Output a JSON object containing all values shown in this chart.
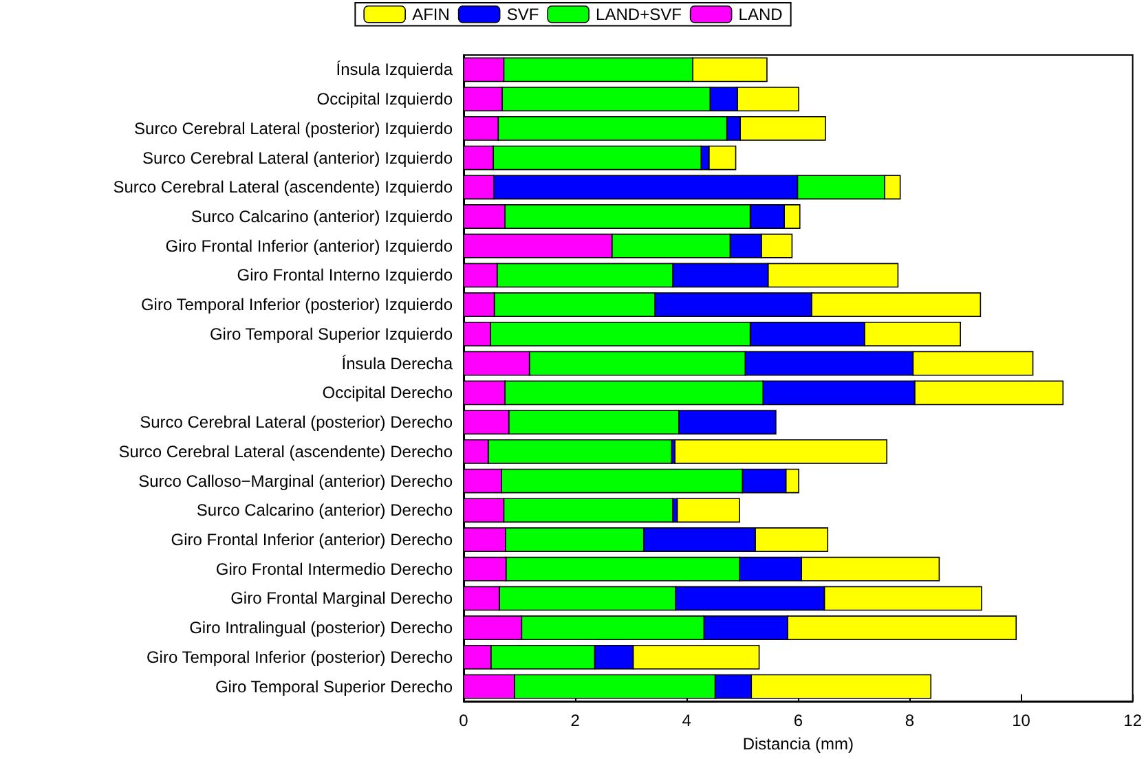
{
  "chart_data": {
    "type": "bar",
    "orientation": "horizontal",
    "xlabel": "Distancia (mm)",
    "xlim": [
      0,
      12
    ],
    "xticks": [
      0,
      2,
      4,
      6,
      8,
      10,
      12
    ],
    "legend": "top",
    "categories": [
      "Ínsula Izquierda",
      "Occipital Izquierdo",
      "Surco Cerebral Lateral (posterior) Izquierdo",
      "Surco Cerebral Lateral (anterior) Izquierdo",
      "Surco Cerebral Lateral (ascendente) Izquierdo",
      "Surco Calcarino (anterior) Izquierdo",
      "Giro Frontal Inferior (anterior) Izquierdo",
      "Giro Frontal Interno Izquierdo",
      "Giro Temporal Inferior (posterior) Izquierdo",
      "Giro Temporal Superior Izquierdo",
      "Ínsula Derecha",
      "Occipital Derecho",
      "Surco Cerebral Lateral (posterior) Derecho",
      "Surco Cerebral Lateral (ascendente) Derecho",
      "Surco Calloso−Marginal (anterior) Derecho",
      "Surco Calcarino (anterior) Derecho",
      "Giro Frontal Inferior (anterior) Derecho",
      "Giro Frontal Intermedio Derecho",
      "Giro Frontal Marginal Derecho",
      "Giro Intralingual (posterior) Derecho",
      "Giro Temporal Inferior (posterior) Derecho",
      "Giro Temporal Superior Derecho"
    ],
    "series": [
      {
        "name": "AFIN",
        "color": "#ffff00",
        "base": [
          4.11,
          4.91,
          4.96,
          4.4,
          7.55,
          5.75,
          5.34,
          5.46,
          6.24,
          7.19,
          8.06,
          8.09,
          null,
          3.79,
          5.78,
          3.83,
          5.23,
          6.06,
          6.47,
          5.81,
          3.04,
          5.16
        ],
        "values": [
          1.33,
          1.1,
          1.53,
          0.48,
          0.28,
          0.28,
          0.55,
          2.33,
          3.03,
          1.72,
          2.15,
          2.66,
          null,
          3.8,
          0.23,
          1.12,
          1.3,
          2.47,
          2.82,
          4.1,
          2.26,
          3.22
        ]
      },
      {
        "name": "SVF",
        "color": "#0000ff",
        "base": [
          null,
          4.42,
          4.72,
          4.26,
          0.54,
          5.14,
          4.78,
          3.75,
          3.43,
          5.14,
          5.05,
          5.37,
          3.86,
          3.73,
          5.0,
          3.75,
          3.23,
          4.95,
          3.8,
          4.31,
          2.35,
          4.51
        ],
        "values": [
          null,
          0.49,
          0.24,
          0.14,
          5.45,
          0.61,
          0.56,
          1.71,
          2.81,
          2.05,
          3.01,
          2.72,
          1.74,
          0.06,
          0.78,
          0.08,
          2.0,
          1.11,
          2.67,
          1.5,
          0.69,
          0.65
        ]
      },
      {
        "name": "LAND+SVF",
        "color": "#00ff00",
        "base": [
          0.72,
          0.69,
          0.62,
          0.53,
          5.99,
          0.74,
          2.66,
          0.6,
          0.55,
          0.48,
          1.18,
          0.74,
          0.81,
          0.44,
          0.68,
          0.72,
          0.75,
          0.76,
          0.64,
          1.04,
          0.49,
          0.91
        ],
        "values": [
          3.39,
          3.73,
          4.1,
          3.73,
          1.56,
          4.4,
          2.12,
          3.15,
          2.88,
          4.66,
          3.87,
          4.63,
          3.05,
          3.29,
          4.32,
          3.03,
          2.48,
          4.19,
          3.16,
          3.27,
          1.86,
          3.6
        ]
      },
      {
        "name": "LAND",
        "color": "#ff00ff",
        "base": [
          0,
          0,
          0,
          0,
          0,
          0,
          0,
          0,
          0,
          0,
          0,
          0,
          0,
          0,
          0,
          0,
          0,
          0,
          0,
          0,
          0,
          0
        ],
        "values": [
          0.72,
          0.69,
          0.62,
          0.53,
          0.54,
          0.74,
          2.66,
          0.6,
          0.55,
          0.48,
          1.18,
          0.74,
          0.81,
          0.44,
          0.68,
          0.72,
          0.75,
          0.76,
          0.64,
          1.04,
          0.49,
          0.91
        ]
      }
    ]
  }
}
